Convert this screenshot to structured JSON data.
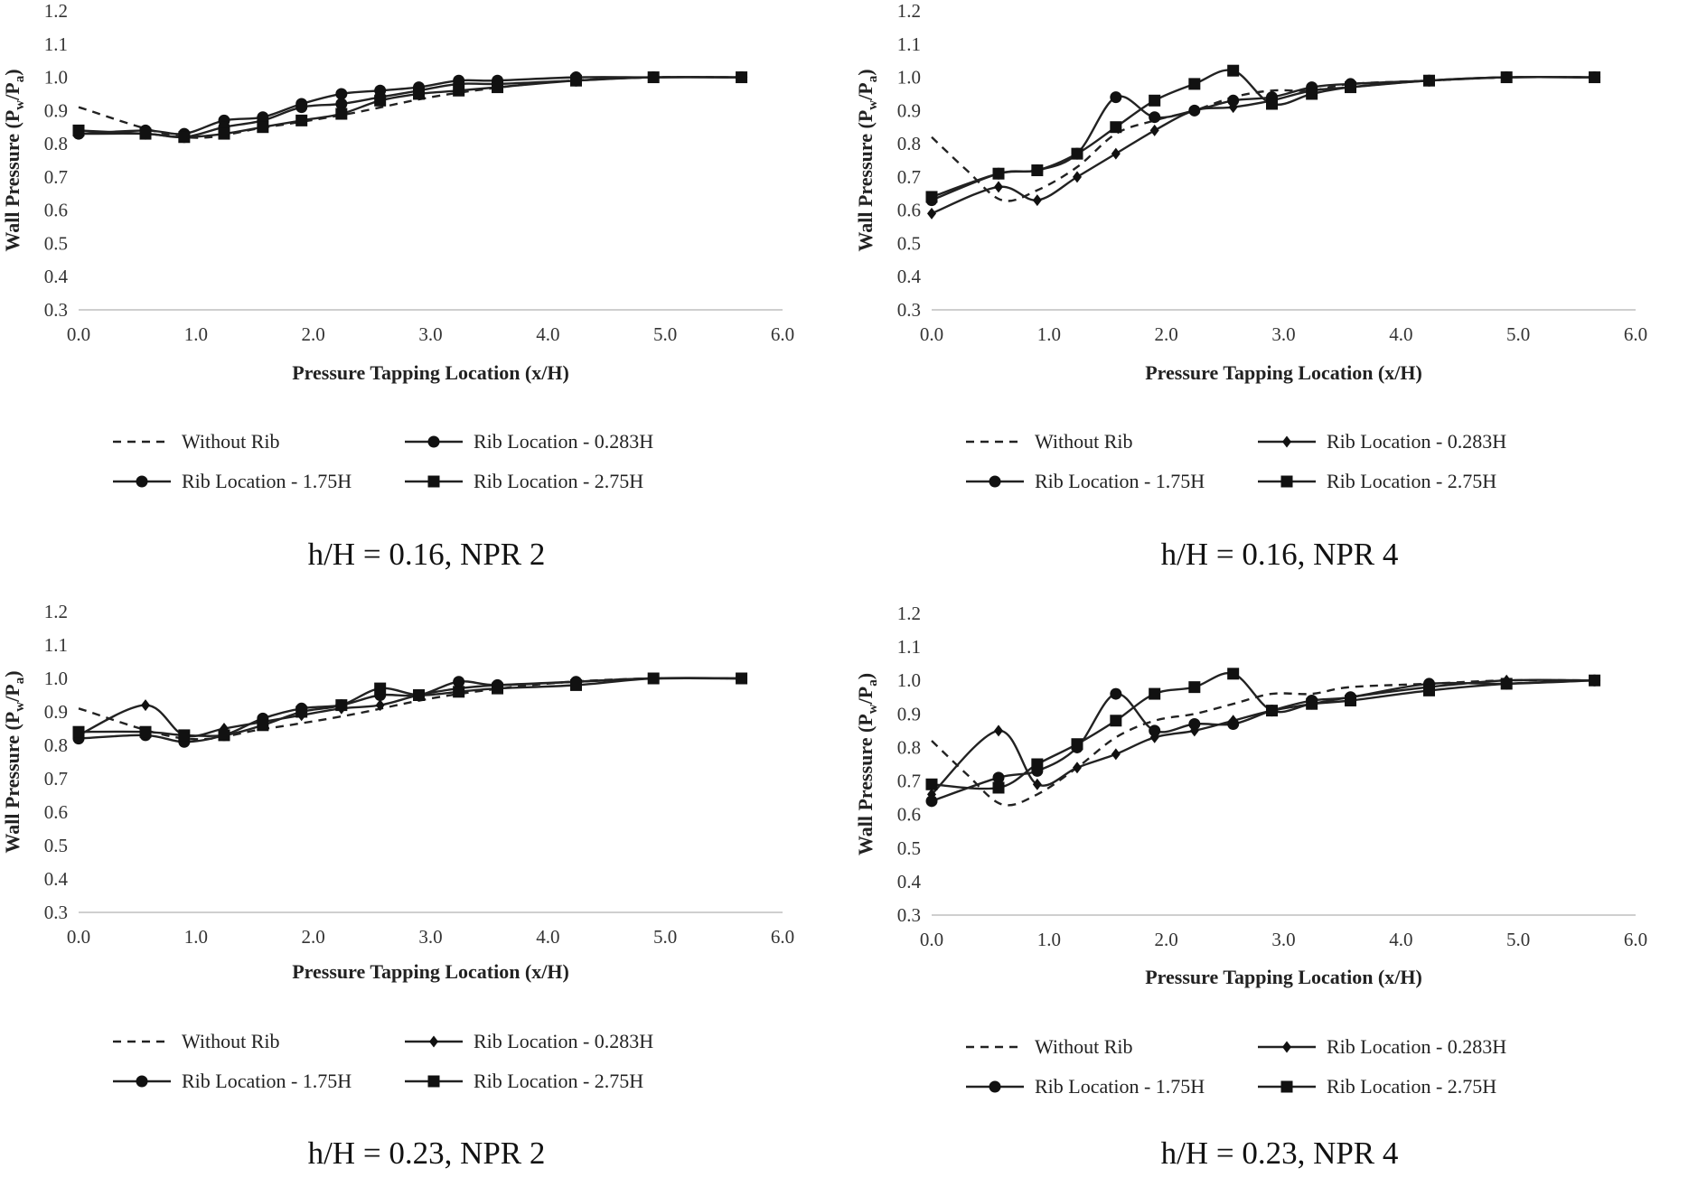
{
  "chart_data": [
    {
      "type": "line",
      "caption": "h/H = 0.16, NPR 2",
      "xlabel": "Pressure Tapping Location (x/H)",
      "ylabel_main": "Wall Pressure (P",
      "ylabel_sub1": "w",
      "ylabel_mid": "/P",
      "ylabel_sub2": "a",
      "ylabel_close": ")",
      "xlim": [
        0,
        6
      ],
      "ylim": [
        0.3,
        1.2
      ],
      "xticks": [
        "0.0",
        "1.0",
        "2.0",
        "3.0",
        "4.0",
        "5.0",
        "6.0"
      ],
      "yticks": [
        "0.3",
        "0.4",
        "0.5",
        "0.6",
        "0.7",
        "0.8",
        "0.9",
        "1.0",
        "1.1",
        "1.2"
      ],
      "grid": false,
      "series": [
        {
          "name": "Without Rib",
          "style": "dashed",
          "marker": "none",
          "x": [
            0,
            0.9,
            1.6,
            2.3,
            3.0,
            3.6,
            4.2,
            4.9,
            5.65
          ],
          "y": [
            0.91,
            0.82,
            0.85,
            0.89,
            0.94,
            0.97,
            0.99,
            1.0,
            1.0
          ]
        },
        {
          "name": "Rib Location - 0.283H",
          "style": "solid",
          "marker": "circle",
          "x": [
            0,
            0.57,
            0.9,
            1.24,
            1.57,
            1.9,
            2.24,
            2.57,
            2.9,
            3.24,
            3.57,
            4.24,
            4.9,
            5.65
          ],
          "y": [
            0.83,
            0.84,
            0.83,
            0.87,
            0.88,
            0.92,
            0.95,
            0.96,
            0.97,
            0.99,
            0.99,
            1.0,
            1.0,
            1.0
          ]
        },
        {
          "name": "Rib Location - 1.75H",
          "style": "solid",
          "marker": "circle",
          "x": [
            0,
            0.57,
            0.9,
            1.24,
            1.57,
            1.9,
            2.24,
            2.57,
            2.9,
            3.24,
            3.57,
            4.24,
            4.9,
            5.65
          ],
          "y": [
            0.83,
            0.83,
            0.82,
            0.85,
            0.87,
            0.91,
            0.92,
            0.94,
            0.96,
            0.98,
            0.98,
            0.99,
            1.0,
            1.0
          ]
        },
        {
          "name": "Rib Location - 2.75H",
          "style": "solid",
          "marker": "square",
          "x": [
            0,
            0.57,
            0.9,
            1.24,
            1.57,
            1.9,
            2.24,
            2.57,
            2.9,
            3.24,
            3.57,
            4.24,
            4.9,
            5.65
          ],
          "y": [
            0.84,
            0.83,
            0.82,
            0.83,
            0.85,
            0.87,
            0.89,
            0.93,
            0.95,
            0.96,
            0.97,
            0.99,
            1.0,
            1.0
          ]
        }
      ]
    },
    {
      "type": "line",
      "caption": "h/H = 0.16, NPR 4",
      "xlabel": "Pressure Tapping Location (x/H)",
      "ylabel_main": "Wall Pressure (P",
      "ylabel_sub1": "w",
      "ylabel_mid": "/P",
      "ylabel_sub2": "a",
      "ylabel_close": ")",
      "xlim": [
        0,
        6
      ],
      "ylim": [
        0.3,
        1.2
      ],
      "xticks": [
        "0.0",
        "1.0",
        "2.0",
        "3.0",
        "4.0",
        "5.0",
        "6.0"
      ],
      "yticks": [
        "0.3",
        "0.4",
        "0.5",
        "0.6",
        "0.7",
        "0.8",
        "0.9",
        "1.0",
        "1.1",
        "1.2"
      ],
      "grid": false,
      "series": [
        {
          "name": "Without Rib",
          "style": "dashed",
          "marker": "none",
          "x": [
            0,
            0.3,
            0.6,
            0.9,
            1.24,
            1.57,
            1.9,
            2.24,
            2.57,
            2.9,
            3.24,
            3.57,
            4.24,
            4.9,
            5.65
          ],
          "y": [
            0.82,
            0.72,
            0.63,
            0.66,
            0.73,
            0.83,
            0.87,
            0.9,
            0.94,
            0.96,
            0.96,
            0.98,
            0.99,
            1.0,
            1.0
          ]
        },
        {
          "name": "Rib Location - 0.283H",
          "style": "solid",
          "marker": "diamond",
          "x": [
            0,
            0.57,
            0.9,
            1.24,
            1.57,
            1.9,
            2.24,
            2.57,
            2.9,
            3.24,
            3.57,
            4.24,
            4.9,
            5.65
          ],
          "y": [
            0.59,
            0.67,
            0.63,
            0.7,
            0.77,
            0.84,
            0.9,
            0.91,
            0.93,
            0.96,
            0.97,
            0.99,
            1.0,
            1.0
          ]
        },
        {
          "name": "Rib Location - 1.75H",
          "style": "solid",
          "marker": "circle",
          "x": [
            0,
            0.57,
            0.9,
            1.24,
            1.57,
            1.9,
            2.24,
            2.57,
            2.9,
            3.24,
            3.57,
            4.24,
            4.9,
            5.65
          ],
          "y": [
            0.63,
            0.71,
            0.72,
            0.77,
            0.94,
            0.88,
            0.9,
            0.93,
            0.94,
            0.97,
            0.98,
            0.99,
            1.0,
            1.0
          ]
        },
        {
          "name": "Rib Location - 2.75H",
          "style": "solid",
          "marker": "square",
          "x": [
            0,
            0.57,
            0.9,
            1.24,
            1.57,
            1.9,
            2.24,
            2.57,
            2.9,
            3.24,
            3.57,
            4.24,
            4.9,
            5.65
          ],
          "y": [
            0.64,
            0.71,
            0.72,
            0.77,
            0.85,
            0.93,
            0.98,
            1.02,
            0.92,
            0.95,
            0.97,
            0.99,
            1.0,
            1.0
          ]
        }
      ]
    },
    {
      "type": "line",
      "caption": "h/H = 0.23, NPR 2",
      "xlabel": "Pressure Tapping Location (x/H)",
      "ylabel_main": "Wall Pressure (P",
      "ylabel_sub1": "w",
      "ylabel_mid": "/P",
      "ylabel_sub2": "a",
      "ylabel_close": ")",
      "xlim": [
        0,
        6
      ],
      "ylim": [
        0.3,
        1.2
      ],
      "xticks": [
        "0.0",
        "1.0",
        "2.0",
        "3.0",
        "4.0",
        "5.0",
        "6.0"
      ],
      "yticks": [
        "0.3",
        "0.4",
        "0.5",
        "0.6",
        "0.7",
        "0.8",
        "0.9",
        "1.0",
        "1.1",
        "1.2"
      ],
      "grid": false,
      "series": [
        {
          "name": "Without Rib",
          "style": "dashed",
          "marker": "none",
          "x": [
            0,
            0.9,
            1.6,
            2.3,
            3.0,
            3.6,
            4.2,
            4.9,
            5.65
          ],
          "y": [
            0.91,
            0.82,
            0.85,
            0.89,
            0.94,
            0.97,
            0.99,
            1.0,
            1.0
          ]
        },
        {
          "name": "Rib Location - 0.283H",
          "style": "solid",
          "marker": "diamond",
          "x": [
            0,
            0.57,
            0.9,
            1.24,
            1.57,
            1.9,
            2.24,
            2.57,
            2.9,
            3.24,
            3.57,
            4.24,
            4.9,
            5.65
          ],
          "y": [
            0.83,
            0.92,
            0.83,
            0.85,
            0.87,
            0.89,
            0.91,
            0.92,
            0.95,
            0.97,
            0.98,
            0.99,
            1.0,
            1.0
          ]
        },
        {
          "name": "Rib Location - 1.75H",
          "style": "solid",
          "marker": "circle",
          "x": [
            0,
            0.57,
            0.9,
            1.24,
            1.57,
            1.9,
            2.24,
            2.57,
            2.9,
            3.24,
            3.57,
            4.24,
            4.9,
            5.65
          ],
          "y": [
            0.82,
            0.83,
            0.81,
            0.83,
            0.88,
            0.91,
            0.92,
            0.95,
            0.95,
            0.99,
            0.98,
            0.99,
            1.0,
            1.0
          ]
        },
        {
          "name": "Rib Location - 2.75H",
          "style": "solid",
          "marker": "square",
          "x": [
            0,
            0.57,
            0.9,
            1.24,
            1.57,
            1.9,
            2.24,
            2.57,
            2.9,
            3.24,
            3.57,
            4.24,
            4.9,
            5.65
          ],
          "y": [
            0.84,
            0.84,
            0.83,
            0.83,
            0.86,
            0.9,
            0.92,
            0.97,
            0.95,
            0.96,
            0.97,
            0.98,
            1.0,
            1.0
          ]
        }
      ]
    },
    {
      "type": "line",
      "caption": "h/H = 0.23, NPR 4",
      "xlabel": "Pressure Tapping Location (x/H)",
      "ylabel_main": "Wall Pressure (P",
      "ylabel_sub1": "w",
      "ylabel_mid": "/P",
      "ylabel_sub2": "a",
      "ylabel_close": ")",
      "xlim": [
        0,
        6
      ],
      "ylim": [
        0.3,
        1.2
      ],
      "xticks": [
        "0.0",
        "1.0",
        "2.0",
        "3.0",
        "4.0",
        "5.0",
        "6.0"
      ],
      "yticks": [
        "0.3",
        "0.4",
        "0.5",
        "0.6",
        "0.7",
        "0.8",
        "0.9",
        "1.0",
        "1.1",
        "1.2"
      ],
      "grid": false,
      "series": [
        {
          "name": "Without Rib",
          "style": "dashed",
          "marker": "none",
          "x": [
            0,
            0.3,
            0.6,
            0.9,
            1.24,
            1.57,
            1.9,
            2.24,
            2.57,
            2.9,
            3.24,
            3.57,
            4.24,
            4.9,
            5.65
          ],
          "y": [
            0.82,
            0.72,
            0.63,
            0.66,
            0.74,
            0.83,
            0.88,
            0.9,
            0.93,
            0.96,
            0.96,
            0.98,
            0.99,
            1.0,
            1.0
          ]
        },
        {
          "name": "Rib Location - 0.283H",
          "style": "solid",
          "marker": "diamond",
          "x": [
            0,
            0.57,
            0.9,
            1.24,
            1.57,
            1.9,
            2.24,
            2.57,
            2.9,
            3.24,
            3.57,
            4.24,
            4.9,
            5.65
          ],
          "y": [
            0.66,
            0.85,
            0.69,
            0.74,
            0.78,
            0.83,
            0.85,
            0.88,
            0.91,
            0.93,
            0.95,
            0.98,
            1.0,
            1.0
          ]
        },
        {
          "name": "Rib Location - 1.75H",
          "style": "solid",
          "marker": "circle",
          "x": [
            0,
            0.57,
            0.9,
            1.24,
            1.57,
            1.9,
            2.24,
            2.57,
            2.9,
            3.24,
            3.57,
            4.24,
            4.9,
            5.65
          ],
          "y": [
            0.64,
            0.71,
            0.73,
            0.8,
            0.96,
            0.85,
            0.87,
            0.87,
            0.91,
            0.94,
            0.95,
            0.99,
            0.99,
            1.0
          ]
        },
        {
          "name": "Rib Location - 2.75H",
          "style": "solid",
          "marker": "square",
          "x": [
            0,
            0.57,
            0.9,
            1.24,
            1.57,
            1.9,
            2.24,
            2.57,
            2.9,
            3.24,
            3.57,
            4.24,
            4.9,
            5.65
          ],
          "y": [
            0.69,
            0.68,
            0.75,
            0.81,
            0.88,
            0.96,
            0.98,
            1.02,
            0.91,
            0.93,
            0.94,
            0.97,
            0.99,
            1.0
          ]
        }
      ]
    }
  ]
}
